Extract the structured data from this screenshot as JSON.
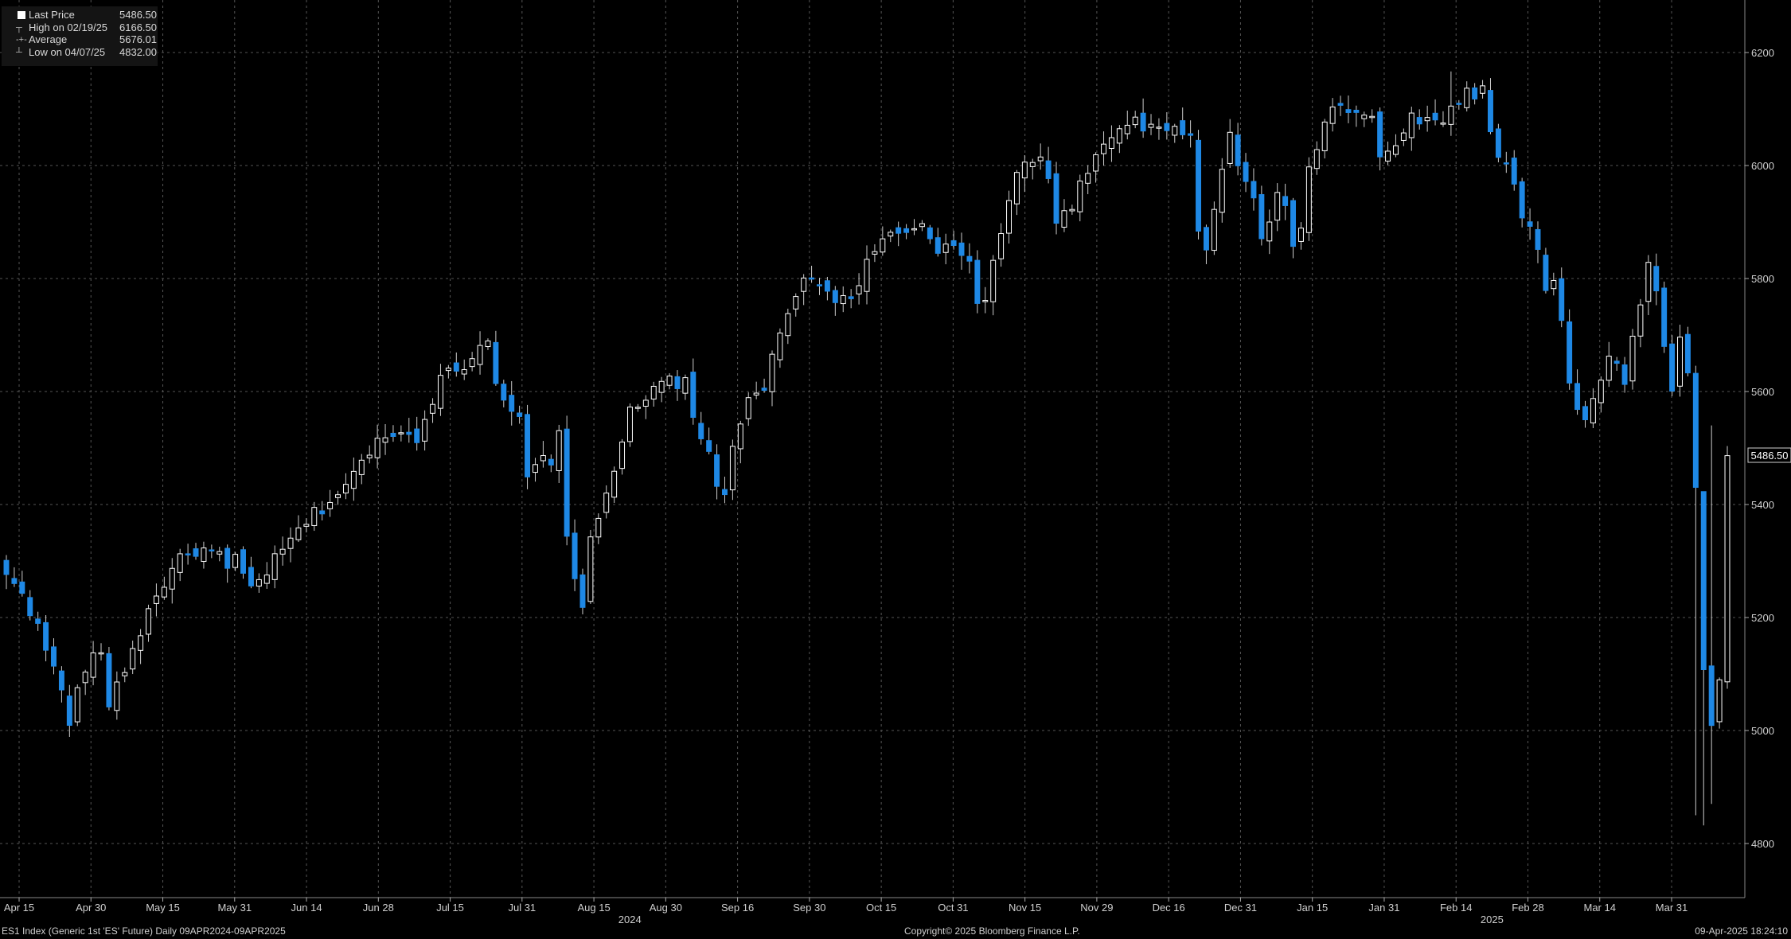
{
  "legend": {
    "last_price_label": "Last Price",
    "last_price_value": "5486.50",
    "high_label": "High on 02/19/25",
    "high_value": "6166.50",
    "average_label": "Average",
    "average_value": "5676.01",
    "low_label": "Low on 04/07/25",
    "low_value": "4832.00"
  },
  "price_tag": "5486.50",
  "footer": {
    "security": "ES1 Index (Generic 1st 'ES' Future)  Daily 09APR2024-09APR2025",
    "copyright": "Copyright© 2025 Bloomberg Finance L.P.",
    "timestamp": "09-Apr-2025 18:24:10"
  },
  "colors": {
    "background": "#000000",
    "up_candle": "#ffffff",
    "down_candle": "#1e88e5",
    "grid": "#555555",
    "text": "#cfcfcf"
  },
  "chart_data": {
    "type": "candlestick",
    "title": "",
    "y_ticks": [
      4800,
      5000,
      5200,
      5400,
      5600,
      5800,
      6000,
      6200
    ],
    "ylim": [
      4720,
      6250
    ],
    "x_ticks": [
      "Apr 15",
      "Apr 30",
      "May 15",
      "May 31",
      "Jun 14",
      "Jun 28",
      "Jul 15",
      "Jul 31",
      "Aug 15",
      "Aug 30",
      "Sep 16",
      "Sep 30",
      "Oct 15",
      "Oct 31",
      "Nov 15",
      "Nov 29",
      "Dec 16",
      "Dec 31",
      "Jan 15",
      "Jan 31",
      "Feb 14",
      "Feb 28",
      "Mar 14",
      "Mar 31"
    ],
    "year_labels": [
      {
        "label": "2024",
        "after_tick": "Aug 15"
      },
      {
        "label": "2025",
        "after_tick": "Feb 14"
      }
    ],
    "grid": true,
    "legend_position": "top-left",
    "close_path": [
      [
        0,
        5270
      ],
      [
        2,
        5250
      ],
      [
        4,
        5180
      ],
      [
        6,
        5110
      ],
      [
        8,
        5020
      ],
      [
        10,
        5110
      ],
      [
        12,
        5140
      ],
      [
        13,
        5050
      ],
      [
        15,
        5110
      ],
      [
        18,
        5210
      ],
      [
        21,
        5290
      ],
      [
        24,
        5320
      ],
      [
        27,
        5310
      ],
      [
        28,
        5280
      ],
      [
        29,
        5300
      ],
      [
        31,
        5250
      ],
      [
        34,
        5300
      ],
      [
        38,
        5370
      ],
      [
        42,
        5420
      ],
      [
        45,
        5470
      ],
      [
        48,
        5530
      ],
      [
        52,
        5520
      ],
      [
        53,
        5560
      ],
      [
        55,
        5620
      ],
      [
        57,
        5640
      ],
      [
        59,
        5660
      ],
      [
        61,
        5700
      ],
      [
        62,
        5620
      ],
      [
        64,
        5570
      ],
      [
        65,
        5560
      ],
      [
        66,
        5440
      ],
      [
        68,
        5480
      ],
      [
        69,
        5470
      ],
      [
        70,
        5520
      ],
      [
        71,
        5340
      ],
      [
        72,
        5260
      ],
      [
        73,
        5230
      ],
      [
        74,
        5330
      ],
      [
        75,
        5370
      ],
      [
        77,
        5470
      ],
      [
        79,
        5560
      ],
      [
        81,
        5590
      ],
      [
        83,
        5630
      ],
      [
        85,
        5600
      ],
      [
        86,
        5620
      ],
      [
        87,
        5550
      ],
      [
        89,
        5490
      ],
      [
        90,
        5440
      ],
      [
        91,
        5420
      ],
      [
        92,
        5490
      ],
      [
        94,
        5580
      ],
      [
        96,
        5610
      ],
      [
        98,
        5700
      ],
      [
        100,
        5780
      ],
      [
        102,
        5800
      ],
      [
        104,
        5780
      ],
      [
        106,
        5760
      ],
      [
        108,
        5790
      ],
      [
        109,
        5830
      ],
      [
        110,
        5840
      ],
      [
        112,
        5880
      ],
      [
        114,
        5870
      ],
      [
        116,
        5900
      ],
      [
        118,
        5850
      ],
      [
        120,
        5870
      ],
      [
        122,
        5830
      ],
      [
        123,
        5750
      ],
      [
        124,
        5760
      ],
      [
        125,
        5820
      ],
      [
        127,
        5950
      ],
      [
        129,
        6010
      ],
      [
        131,
        6020
      ],
      [
        132,
        5980
      ],
      [
        133,
        5890
      ],
      [
        134,
        5910
      ],
      [
        136,
        5960
      ],
      [
        138,
        6010
      ],
      [
        140,
        6050
      ],
      [
        142,
        6080
      ],
      [
        143,
        6090
      ],
      [
        144,
        6070
      ],
      [
        146,
        6060
      ],
      [
        148,
        6080
      ],
      [
        150,
        6050
      ],
      [
        151,
        5880
      ],
      [
        152,
        5850
      ],
      [
        153,
        5930
      ],
      [
        155,
        6070
      ],
      [
        156,
        6010
      ],
      [
        157,
        5960
      ],
      [
        158,
        5930
      ],
      [
        159,
        5880
      ],
      [
        160,
        5900
      ],
      [
        161,
        5950
      ],
      [
        162,
        5930
      ],
      [
        163,
        5860
      ],
      [
        164,
        5880
      ],
      [
        165,
        5990
      ],
      [
        167,
        6080
      ],
      [
        169,
        6110
      ],
      [
        171,
        6090
      ],
      [
        173,
        6080
      ],
      [
        174,
        6010
      ],
      [
        176,
        6040
      ],
      [
        178,
        6080
      ],
      [
        179,
        6070
      ],
      [
        181,
        6090
      ],
      [
        182,
        6080
      ],
      [
        183,
        6100
      ],
      [
        185,
        6130
      ],
      [
        187,
        6130
      ],
      [
        188,
        6060
      ],
      [
        189,
        6020
      ],
      [
        190,
        6000
      ],
      [
        191,
        5960
      ],
      [
        192,
        5900
      ],
      [
        193,
        5880
      ],
      [
        194,
        5860
      ],
      [
        195,
        5780
      ],
      [
        196,
        5790
      ],
      [
        197,
        5720
      ],
      [
        198,
        5610
      ],
      [
        199,
        5570
      ],
      [
        200,
        5540
      ],
      [
        201,
        5580
      ],
      [
        202,
        5620
      ],
      [
        203,
        5650
      ],
      [
        204,
        5660
      ],
      [
        205,
        5620
      ],
      [
        206,
        5690
      ],
      [
        207,
        5750
      ],
      [
        208,
        5830
      ],
      [
        209,
        5770
      ],
      [
        210,
        5680
      ],
      [
        211,
        5600
      ],
      [
        212,
        5700
      ],
      [
        213,
        5640
      ],
      [
        214,
        5420
      ],
      [
        215,
        5110
      ],
      [
        216,
        5000
      ],
      [
        217,
        5080
      ],
      [
        218,
        5486
      ]
    ]
  }
}
